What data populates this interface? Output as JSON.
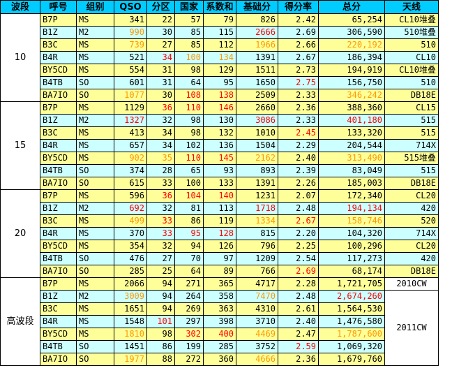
{
  "headers": [
    "波段",
    "呼号",
    "组别",
    "QSO",
    "分区",
    "国家",
    "系数和",
    "基础分",
    "得分率",
    "总分",
    "天线"
  ],
  "groups": [
    {
      "band": "10",
      "rows": [
        {
          "cells": [
            "B7P",
            "MS",
            "341",
            "22",
            "57",
            "79",
            "826",
            "2.42",
            "65,254",
            "CL10堆叠"
          ],
          "hl": {}
        },
        {
          "cells": [
            "B1Z",
            "M2",
            "990",
            "30",
            "85",
            "115",
            "2666",
            "2.69",
            "306,590",
            "510堆叠"
          ],
          "hl": {
            "2": "orange",
            "6": "red"
          }
        },
        {
          "cells": [
            "B3C",
            "MS",
            "739",
            "27",
            "85",
            "112",
            "1966",
            "2.66",
            "220,192",
            "510"
          ],
          "hl": {
            "2": "orange",
            "6": "orange",
            "8": "orange"
          }
        },
        {
          "cells": [
            "B4R",
            "MS",
            "521",
            "34",
            "100",
            "134",
            "1391",
            "2.67",
            "186,394",
            "CL10"
          ],
          "hl": {
            "3": "red",
            "4": "orange",
            "5": "orange"
          }
        },
        {
          "cells": [
            "BY5CD",
            "MS",
            "554",
            "31",
            "98",
            "129",
            "1511",
            "2.73",
            "194,919",
            "CL10堆叠"
          ],
          "hl": {}
        },
        {
          "cells": [
            "B4TB",
            "SO",
            "601",
            "31",
            "64",
            "95",
            "1650",
            "2.75",
            "156,750",
            "510"
          ],
          "hl": {
            "7": "red"
          }
        },
        {
          "cells": [
            "BA7IO",
            "SO",
            "1077",
            "30",
            "108",
            "138",
            "2509",
            "2.33",
            "346,242",
            "DB18E"
          ],
          "hl": {
            "2": "orange",
            "4": "red",
            "5": "red",
            "8": "orange"
          }
        }
      ]
    },
    {
      "band": "15",
      "rows": [
        {
          "cells": [
            "B7P",
            "MS",
            "1129",
            "36",
            "110",
            "146",
            "2660",
            "2.36",
            "388,360",
            "CL15"
          ],
          "hl": {
            "3": "red",
            "4": "red",
            "5": "red"
          }
        },
        {
          "cells": [
            "B1Z",
            "M2",
            "1327",
            "32",
            "98",
            "130",
            "3086",
            "2.33",
            "401,180",
            "515"
          ],
          "hl": {
            "2": "red",
            "6": "red",
            "8": "red"
          }
        },
        {
          "cells": [
            "B3C",
            "MS",
            "413",
            "34",
            "98",
            "132",
            "1010",
            "2.45",
            "133,320",
            "515"
          ],
          "hl": {
            "7": "red"
          }
        },
        {
          "cells": [
            "B4R",
            "MS",
            "657",
            "34",
            "102",
            "136",
            "1504",
            "2.29",
            "204,544",
            "714X"
          ],
          "hl": {}
        },
        {
          "cells": [
            "BY5CD",
            "MS",
            "902",
            "35",
            "110",
            "145",
            "2162",
            "2.40",
            "313,490",
            "515堆叠"
          ],
          "hl": {
            "2": "orange",
            "3": "orange",
            "4": "red",
            "5": "red",
            "6": "orange",
            "8": "orange"
          }
        },
        {
          "cells": [
            "B4TB",
            "SO",
            "374",
            "28",
            "65",
            "93",
            "893",
            "2.39",
            "83,049",
            "515"
          ],
          "hl": {}
        },
        {
          "cells": [
            "BA7IO",
            "SO",
            "615",
            "33",
            "100",
            "133",
            "1391",
            "2.26",
            "185,003",
            "DB18E"
          ],
          "hl": {}
        }
      ]
    },
    {
      "band": "20",
      "rows": [
        {
          "cells": [
            "B7P",
            "MS",
            "596",
            "36",
            "104",
            "140",
            "1231",
            "2.07",
            "172,340",
            "CL20"
          ],
          "hl": {
            "3": "red",
            "4": "red",
            "5": "red"
          }
        },
        {
          "cells": [
            "B1Z",
            "M2",
            "692",
            "32",
            "81",
            "113",
            "1718",
            "2.48",
            "194,134",
            "420"
          ],
          "hl": {
            "2": "red",
            "6": "red",
            "8": "red"
          }
        },
        {
          "cells": [
            "B3C",
            "MS",
            "499",
            "33",
            "86",
            "119",
            "1334",
            "2.67",
            "158,746",
            "520"
          ],
          "hl": {
            "2": "orange",
            "3": "red",
            "6": "orange",
            "7": "red",
            "8": "orange"
          }
        },
        {
          "cells": [
            "B4R",
            "MS",
            "370",
            "33",
            "95",
            "128",
            "815",
            "2.20",
            "104,320",
            "714X"
          ],
          "hl": {
            "3": "red",
            "4": "red",
            "5": "red"
          }
        },
        {
          "cells": [
            "BY5CD",
            "MS",
            "354",
            "32",
            "94",
            "126",
            "796",
            "2.25",
            "100,296",
            "CL20"
          ],
          "hl": {}
        },
        {
          "cells": [
            "B4TB",
            "SO",
            "476",
            "27",
            "70",
            "97",
            "1209",
            "2.54",
            "117,273",
            "420"
          ],
          "hl": {}
        },
        {
          "cells": [
            "BA7IO",
            "SO",
            "285",
            "25",
            "64",
            "89",
            "766",
            "2.69",
            "68,174",
            "DB18E"
          ],
          "hl": {
            "7": "red"
          }
        }
      ]
    },
    {
      "band": "高波段",
      "rows": [
        {
          "cells": [
            "B7P",
            "MS",
            "2066",
            "94",
            "271",
            "365",
            "4717",
            "2.28",
            "1,721,705"
          ],
          "hl": {}
        },
        {
          "cells": [
            "B1Z",
            "M2",
            "3009",
            "94",
            "264",
            "358",
            "7470",
            "2.48",
            "2,674,260"
          ],
          "hl": {
            "2": "orange",
            "6": "orange",
            "8": "red"
          }
        },
        {
          "cells": [
            "B3C",
            "MS",
            "1651",
            "94",
            "269",
            "363",
            "4310",
            "2.61",
            "1,564,530"
          ],
          "hl": {}
        },
        {
          "cells": [
            "B4R",
            "MS",
            "1548",
            "101",
            "297",
            "398",
            "3710",
            "2.40",
            "1,476,580"
          ],
          "hl": {
            "3": "red"
          }
        },
        {
          "cells": [
            "BY5CD",
            "MS",
            "1810",
            "98",
            "302",
            "400",
            "4469",
            "2.47",
            "1,787,600"
          ],
          "hl": {
            "2": "orange",
            "4": "red",
            "5": "red",
            "6": "orange",
            "8": "orange"
          }
        },
        {
          "cells": [
            "B4TB",
            "SO",
            "1451",
            "86",
            "199",
            "285",
            "3752",
            "2.59",
            "1,069,320"
          ],
          "hl": {
            "7": "red"
          }
        },
        {
          "cells": [
            "BA7IO",
            "SO",
            "1977",
            "88",
            "272",
            "360",
            "4666",
            "2.36",
            "1,679,760"
          ],
          "hl": {
            "2": "orange",
            "6": "orange"
          }
        }
      ],
      "antennas": [
        "2010CW",
        "2011CW"
      ]
    }
  ],
  "colors": {
    "header_bg": "#00ccff",
    "row_yellow": "#ffff99",
    "row_cyan": "#ccffff",
    "highlight_red": "#ff0000",
    "highlight_orange": "#ff9900"
  }
}
